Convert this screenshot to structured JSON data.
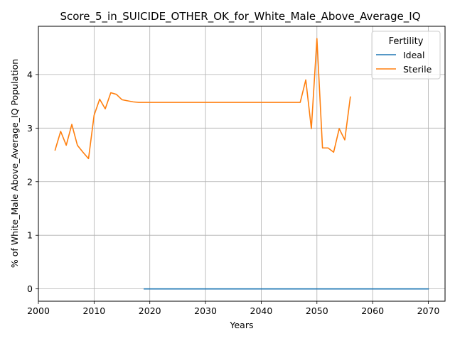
{
  "chart_data": {
    "type": "line",
    "title": "Score_5_in_SUICIDE_OTHER_OK_for_White_Male_Above_Average_IQ",
    "xlabel": "Years",
    "ylabel": "% of White_Male Above_Average_IQ Population",
    "xlim": [
      2000,
      2073
    ],
    "ylim": [
      -0.23,
      4.9
    ],
    "xticks": [
      2000,
      2010,
      2020,
      2030,
      2040,
      2050,
      2060,
      2070
    ],
    "yticks": [
      0,
      1,
      2,
      3,
      4
    ],
    "grid": true,
    "legend": {
      "title": "Fertility",
      "placement": "top-right"
    },
    "series": [
      {
        "name": "Ideal",
        "color": "#1f77b4",
        "x": [
          2019,
          2070
        ],
        "y": [
          0,
          0
        ]
      },
      {
        "name": "Sterile",
        "color": "#ff7f0e",
        "x": [
          2003,
          2004,
          2005,
          2006,
          2007,
          2008,
          2009,
          2010,
          2011,
          2012,
          2013,
          2014,
          2015,
          2016,
          2017,
          2018,
          2019,
          2020,
          2025,
          2030,
          2035,
          2040,
          2045,
          2047,
          2048,
          2049,
          2050,
          2051,
          2052,
          2053,
          2054,
          2055,
          2056
        ],
        "y": [
          2.59,
          2.94,
          2.68,
          3.07,
          2.68,
          2.55,
          2.43,
          3.24,
          3.54,
          3.36,
          3.66,
          3.63,
          3.53,
          3.51,
          3.49,
          3.48,
          3.48,
          3.48,
          3.48,
          3.48,
          3.48,
          3.48,
          3.48,
          3.48,
          3.9,
          2.99,
          4.67,
          2.63,
          2.63,
          2.55,
          2.99,
          2.78,
          3.58
        ]
      }
    ]
  }
}
